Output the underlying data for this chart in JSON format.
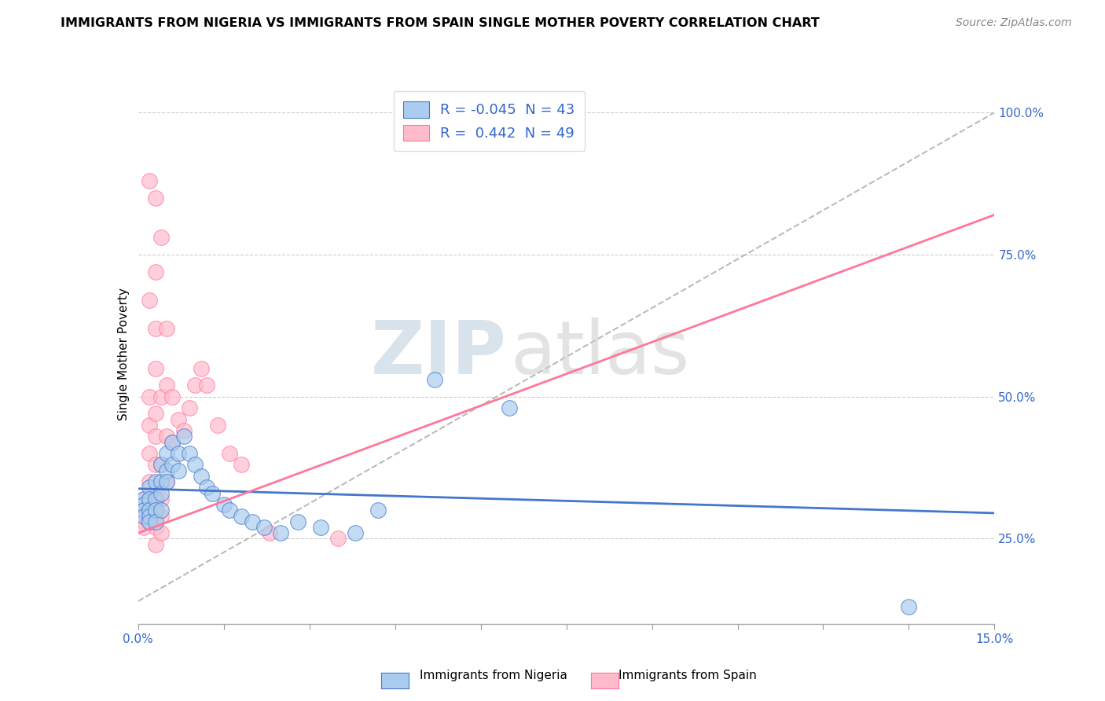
{
  "title": "IMMIGRANTS FROM NIGERIA VS IMMIGRANTS FROM SPAIN SINGLE MOTHER POVERTY CORRELATION CHART",
  "source": "Source: ZipAtlas.com",
  "ylabel": "Single Mother Poverty",
  "ytick_labels": [
    "25.0%",
    "50.0%",
    "75.0%",
    "100.0%"
  ],
  "ytick_values": [
    0.25,
    0.5,
    0.75,
    1.0
  ],
  "xmin": 0.0,
  "xmax": 0.15,
  "ymin": 0.1,
  "ymax": 1.05,
  "legend_entry1": "R = -0.045  N = 43",
  "legend_entry2": "R =  0.442  N = 49",
  "nigeria_color": "#AACCEE",
  "spain_color": "#FFBBCC",
  "nigeria_line_color": "#4477CC",
  "spain_line_color": "#FF7799",
  "watermark_zip": "ZIP",
  "watermark_atlas": "atlas",
  "nigeria_dots": [
    [
      0.001,
      0.32
    ],
    [
      0.001,
      0.31
    ],
    [
      0.001,
      0.3
    ],
    [
      0.001,
      0.29
    ],
    [
      0.002,
      0.34
    ],
    [
      0.002,
      0.32
    ],
    [
      0.002,
      0.3
    ],
    [
      0.002,
      0.29
    ],
    [
      0.002,
      0.28
    ],
    [
      0.003,
      0.35
    ],
    [
      0.003,
      0.32
    ],
    [
      0.003,
      0.3
    ],
    [
      0.003,
      0.28
    ],
    [
      0.004,
      0.38
    ],
    [
      0.004,
      0.35
    ],
    [
      0.004,
      0.33
    ],
    [
      0.004,
      0.3
    ],
    [
      0.005,
      0.4
    ],
    [
      0.005,
      0.37
    ],
    [
      0.005,
      0.35
    ],
    [
      0.006,
      0.42
    ],
    [
      0.006,
      0.38
    ],
    [
      0.007,
      0.4
    ],
    [
      0.007,
      0.37
    ],
    [
      0.008,
      0.43
    ],
    [
      0.009,
      0.4
    ],
    [
      0.01,
      0.38
    ],
    [
      0.011,
      0.36
    ],
    [
      0.012,
      0.34
    ],
    [
      0.013,
      0.33
    ],
    [
      0.015,
      0.31
    ],
    [
      0.016,
      0.3
    ],
    [
      0.018,
      0.29
    ],
    [
      0.02,
      0.28
    ],
    [
      0.022,
      0.27
    ],
    [
      0.025,
      0.26
    ],
    [
      0.028,
      0.28
    ],
    [
      0.032,
      0.27
    ],
    [
      0.038,
      0.26
    ],
    [
      0.042,
      0.3
    ],
    [
      0.052,
      0.53
    ],
    [
      0.065,
      0.48
    ],
    [
      0.135,
      0.13
    ]
  ],
  "spain_dots": [
    [
      0.001,
      0.32
    ],
    [
      0.001,
      0.31
    ],
    [
      0.001,
      0.3
    ],
    [
      0.001,
      0.29
    ],
    [
      0.001,
      0.28
    ],
    [
      0.001,
      0.27
    ],
    [
      0.002,
      0.88
    ],
    [
      0.002,
      0.67
    ],
    [
      0.002,
      0.5
    ],
    [
      0.002,
      0.45
    ],
    [
      0.002,
      0.4
    ],
    [
      0.002,
      0.35
    ],
    [
      0.002,
      0.32
    ],
    [
      0.002,
      0.29
    ],
    [
      0.002,
      0.28
    ],
    [
      0.003,
      0.85
    ],
    [
      0.003,
      0.72
    ],
    [
      0.003,
      0.62
    ],
    [
      0.003,
      0.55
    ],
    [
      0.003,
      0.47
    ],
    [
      0.003,
      0.43
    ],
    [
      0.003,
      0.38
    ],
    [
      0.003,
      0.32
    ],
    [
      0.003,
      0.3
    ],
    [
      0.003,
      0.27
    ],
    [
      0.003,
      0.24
    ],
    [
      0.004,
      0.78
    ],
    [
      0.004,
      0.5
    ],
    [
      0.004,
      0.38
    ],
    [
      0.004,
      0.32
    ],
    [
      0.004,
      0.29
    ],
    [
      0.004,
      0.26
    ],
    [
      0.005,
      0.62
    ],
    [
      0.005,
      0.52
    ],
    [
      0.005,
      0.43
    ],
    [
      0.005,
      0.35
    ],
    [
      0.006,
      0.5
    ],
    [
      0.006,
      0.42
    ],
    [
      0.007,
      0.46
    ],
    [
      0.008,
      0.44
    ],
    [
      0.009,
      0.48
    ],
    [
      0.01,
      0.52
    ],
    [
      0.011,
      0.55
    ],
    [
      0.012,
      0.52
    ],
    [
      0.014,
      0.45
    ],
    [
      0.016,
      0.4
    ],
    [
      0.018,
      0.38
    ],
    [
      0.023,
      0.26
    ],
    [
      0.035,
      0.25
    ]
  ],
  "nigeria_trend": [
    0.0,
    0.15,
    0.338,
    0.295
  ],
  "spain_trend": [
    0.0,
    0.15,
    0.26,
    0.82
  ]
}
